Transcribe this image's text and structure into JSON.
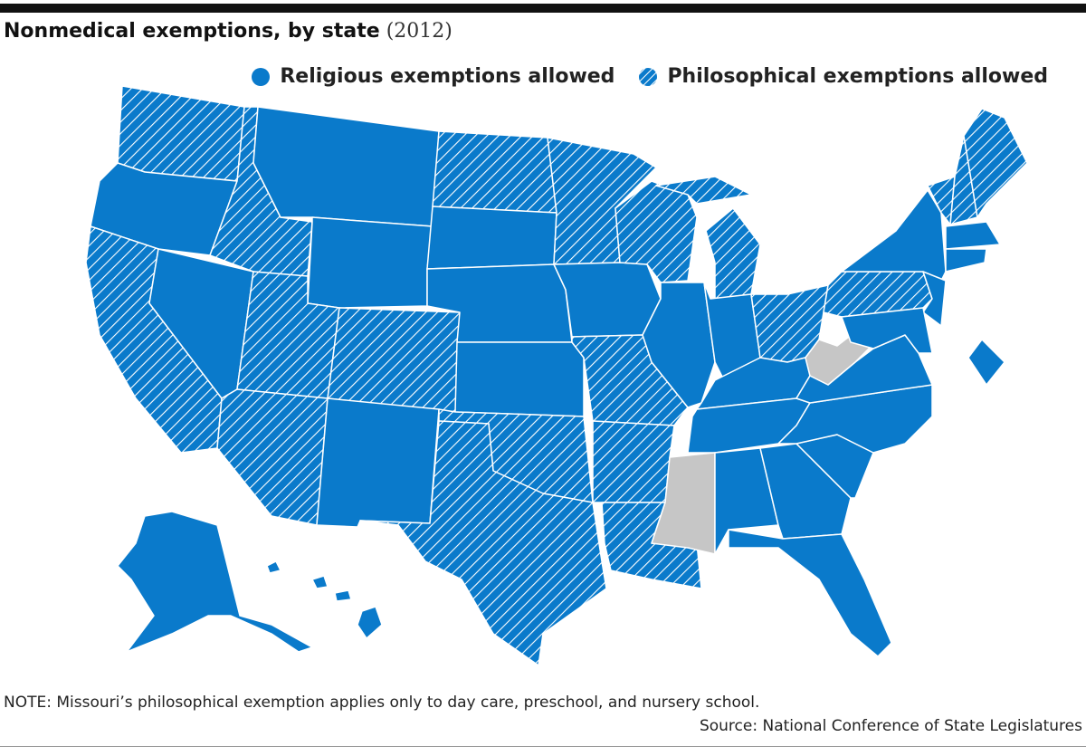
{
  "header": {
    "title": "Nonmedical exemptions, by state",
    "year": "(2012)"
  },
  "legend": [
    "Religious exemptions allowed",
    "Philosophical exemptions allowed"
  ],
  "note": "NOTE: Missouri’s philosophical exemption applies only to day care, preschool, and nursery school.",
  "source": "Source: National Conference of State Legislatures"
}
